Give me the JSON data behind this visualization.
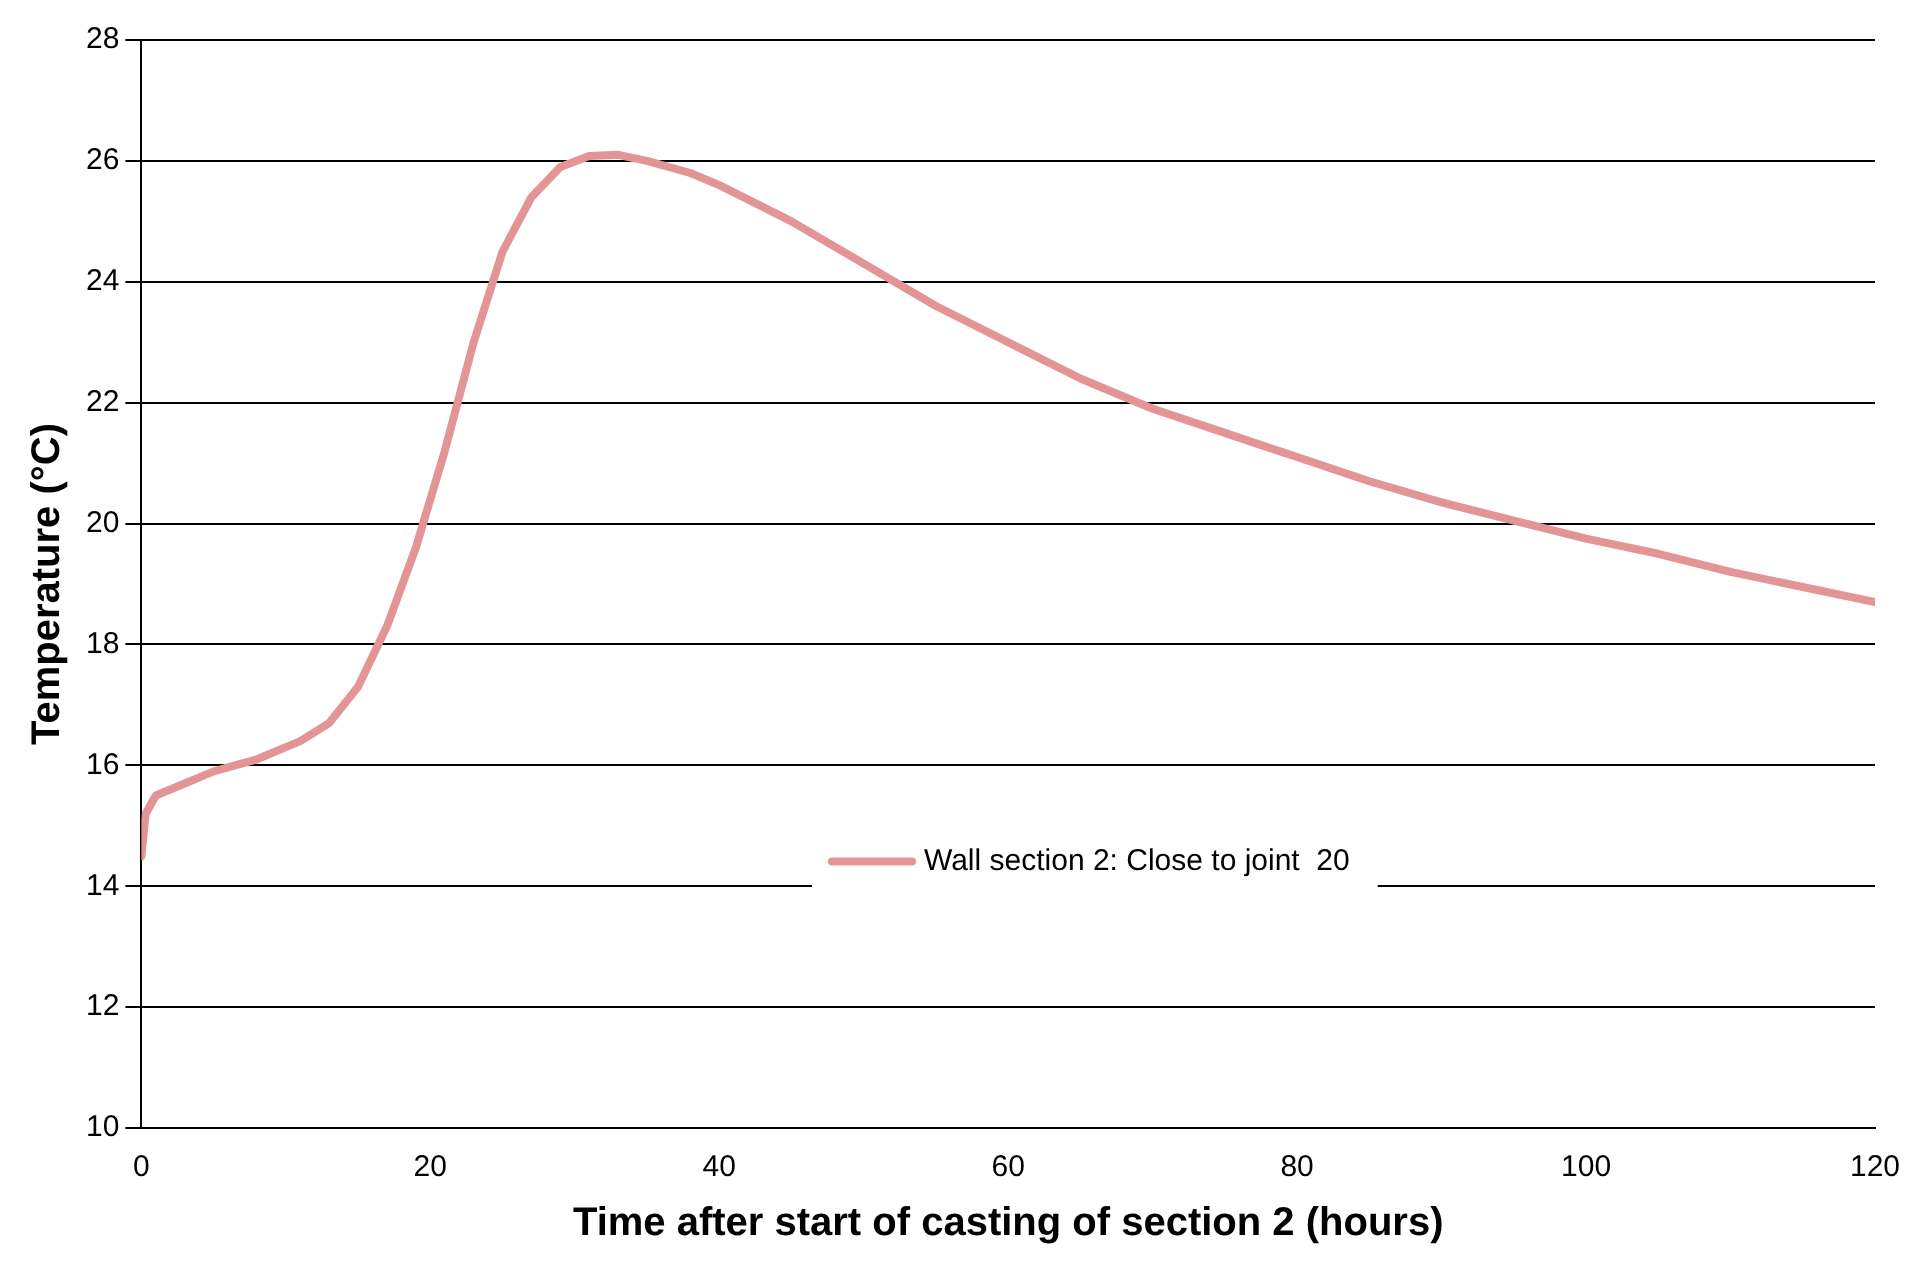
{
  "chart_data": {
    "type": "line",
    "xlabel": "Time after start of casting of section 2 (hours)",
    "ylabel": "Temperature (°C)",
    "xlim": [
      0,
      120
    ],
    "xticks": [
      0,
      20,
      40,
      60,
      80,
      100,
      120
    ],
    "ylim": [
      10,
      28
    ],
    "yticks": [
      10,
      12,
      14,
      16,
      18,
      20,
      22,
      24,
      26,
      28
    ],
    "grid": "y",
    "legend": "center",
    "marker": "none",
    "line_style": "solid",
    "series": [
      {
        "name": "Wall section 2: Close to joint  20",
        "color": "#e39494",
        "x": [
          0,
          0.3,
          1,
          3,
          5,
          8,
          11,
          13,
          15,
          17,
          19,
          21,
          23,
          25,
          27,
          29,
          31,
          33,
          35,
          38,
          40,
          45,
          50,
          55,
          60,
          65,
          70,
          75,
          80,
          85,
          90,
          95,
          100,
          105,
          110,
          115,
          120
        ],
        "values": [
          14.5,
          15.2,
          15.5,
          15.7,
          15.9,
          16.1,
          16.4,
          16.7,
          17.3,
          18.3,
          19.6,
          21.2,
          23.0,
          24.5,
          25.4,
          25.9,
          26.08,
          26.1,
          26.0,
          25.8,
          25.6,
          25.0,
          24.3,
          23.6,
          23.0,
          22.4,
          21.9,
          21.5,
          21.1,
          20.7,
          20.35,
          20.05,
          19.75,
          19.5,
          19.2,
          18.95,
          18.7
        ]
      }
    ]
  }
}
